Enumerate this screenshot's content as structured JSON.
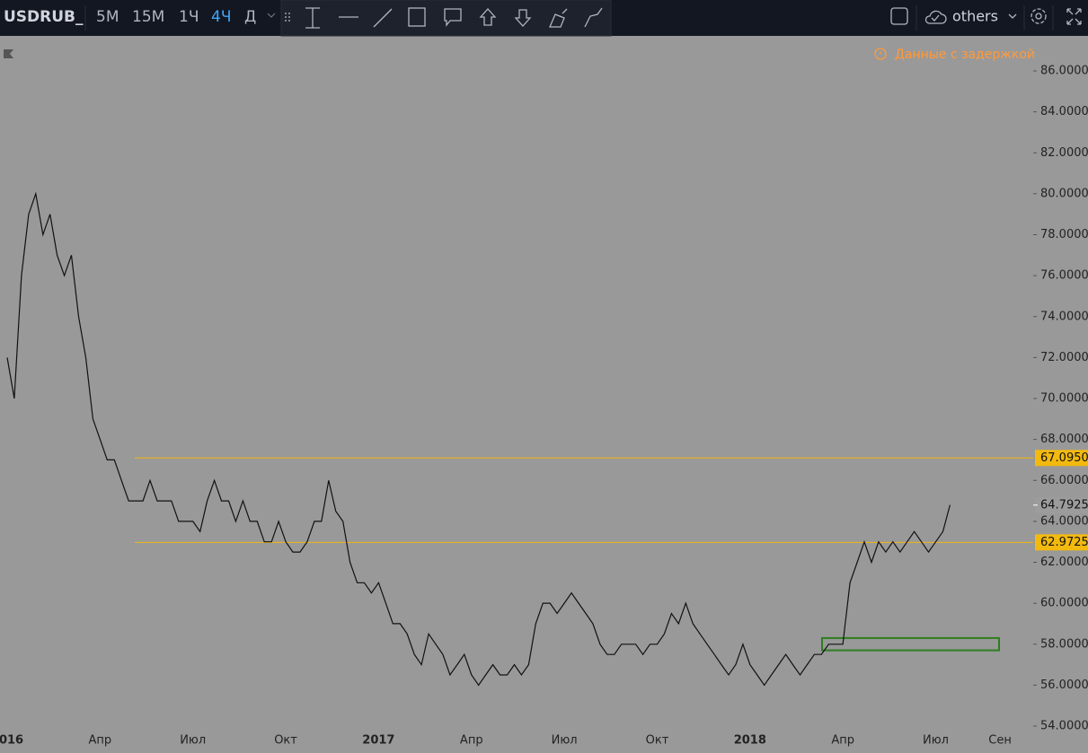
{
  "toolbar": {
    "symbol": "USDRUB_",
    "intervals": [
      "5M",
      "15M",
      "1Ч",
      "4Ч",
      "Д"
    ],
    "active_interval": 3,
    "layout_name": "others"
  },
  "notice": "Данные с задержкой",
  "chart_data": {
    "type": "line",
    "color": "#111111",
    "categories": [
      "2016",
      null,
      null,
      null,
      null,
      null,
      null,
      null,
      null,
      null,
      null,
      null,
      null,
      "Апр",
      null,
      null,
      null,
      null,
      null,
      null,
      null,
      null,
      null,
      null,
      null,
      null,
      "Июл",
      null,
      null,
      null,
      null,
      null,
      null,
      null,
      null,
      null,
      null,
      null,
      null,
      "Окт",
      null,
      null,
      null,
      null,
      null,
      null,
      null,
      null,
      null,
      null,
      null,
      null,
      "2017",
      null,
      null,
      null,
      null,
      null,
      null,
      null,
      null,
      null,
      null,
      null,
      null,
      "Апр",
      null,
      null,
      null,
      null,
      null,
      null,
      null,
      null,
      null,
      null,
      null,
      null,
      "Июл",
      null,
      null,
      null,
      null,
      null,
      null,
      null,
      null,
      null,
      null,
      null,
      null,
      "Окт",
      null,
      null,
      null,
      null,
      null,
      null,
      null,
      null,
      null,
      null,
      null,
      null,
      "2018",
      null,
      null,
      null,
      null,
      null,
      null,
      null,
      null,
      null,
      null,
      null,
      null,
      "Апр",
      null,
      null,
      null,
      null,
      null,
      null,
      null,
      null,
      null,
      null,
      null,
      null,
      "Июл",
      null,
      null,
      null,
      null,
      null,
      null,
      null,
      null,
      "Сен"
    ],
    "series": [
      {
        "name": "USDRUB_",
        "color": "#111111",
        "values": [
          72,
          70,
          76,
          79,
          80,
          78,
          79,
          77,
          76,
          77,
          74,
          72,
          69,
          68,
          67,
          67,
          66,
          65,
          65,
          65,
          66,
          65,
          65,
          65,
          64,
          64,
          64,
          63.5,
          65,
          66,
          65,
          65,
          64,
          65,
          64,
          64,
          63,
          63,
          64,
          63,
          62.5,
          62.5,
          63,
          64,
          64,
          66,
          64.5,
          64,
          62,
          61,
          61,
          60.5,
          61,
          60,
          59,
          59,
          58.5,
          57.5,
          57,
          58.5,
          58,
          57.5,
          56.5,
          57,
          57.5,
          56.5,
          56,
          56.5,
          57,
          56.5,
          56.5,
          57,
          56.5,
          57,
          59,
          60,
          60,
          59.5,
          60,
          60.5,
          60,
          59.5,
          59,
          58,
          57.5,
          57.5,
          58,
          58,
          58,
          57.5,
          58,
          58,
          58.5,
          59.5,
          59,
          60,
          59,
          58.5,
          58,
          57.5,
          57,
          56.5,
          57,
          58,
          57,
          56.5,
          56,
          56.5,
          57,
          57.5,
          57,
          56.5,
          57,
          57.5,
          57.5,
          58,
          58,
          58,
          61,
          62,
          63,
          62,
          63,
          62.5,
          63,
          62.5,
          63,
          63.5,
          63,
          62.5,
          63,
          63.5,
          64.8,
          null,
          null,
          null,
          null,
          null,
          null,
          null
        ]
      }
    ],
    "ylim": [
      54,
      86
    ],
    "yticks": [
      {
        "value": 54,
        "label": "54.0000"
      },
      {
        "value": 56,
        "label": "56.0000"
      },
      {
        "value": 58,
        "label": "58.0000"
      },
      {
        "value": 60,
        "label": "60.0000"
      },
      {
        "value": 62,
        "label": "62.0000"
      },
      {
        "value": 64,
        "label": "64.0000"
      },
      {
        "value": 66,
        "label": "66.0000"
      },
      {
        "value": 68,
        "label": "68.0000"
      },
      {
        "value": 70,
        "label": "70.0000"
      },
      {
        "value": 72,
        "label": "72.0000"
      },
      {
        "value": 74,
        "label": "74.0000"
      },
      {
        "value": 76,
        "label": "76.0000"
      },
      {
        "value": 78,
        "label": "78.0000"
      },
      {
        "value": 80,
        "label": "80.0000"
      },
      {
        "value": 82,
        "label": "82.0000"
      },
      {
        "value": 84,
        "label": "84.0000"
      },
      {
        "value": 86,
        "label": "86.0000"
      }
    ],
    "levels": [
      {
        "value": 67.095,
        "label": "67.0950"
      },
      {
        "value": 62.9725,
        "label": "62.9725"
      }
    ],
    "level_color": "#f2b90f",
    "last_price": {
      "value": 64.7925,
      "label": "64.7925"
    },
    "box": {
      "top": 58.3,
      "bottom": 57.7,
      "color": "#2e7d1e"
    }
  }
}
